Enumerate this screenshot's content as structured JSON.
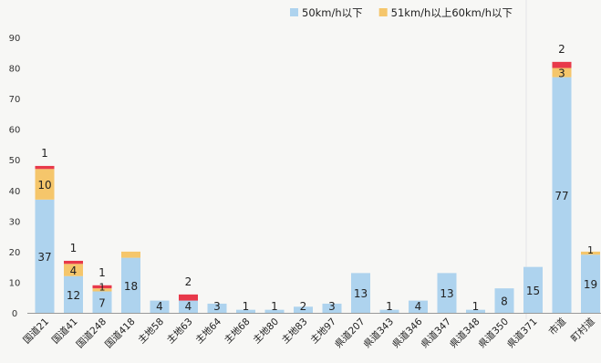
{
  "chart_data": {
    "type": "bar",
    "stacked": true,
    "legend_position": "top-right",
    "ylim": [
      0,
      90
    ],
    "yticks": [
      0,
      10,
      20,
      30,
      40,
      50,
      60,
      70,
      80,
      90
    ],
    "grid": false,
    "categories": [
      "国道21",
      "国道41",
      "国道248",
      "国道418",
      "主地58",
      "主地63",
      "主地64",
      "主地68",
      "主地80",
      "主地83",
      "主地97",
      "県道207",
      "県道343",
      "県道346",
      "県道347",
      "県道348",
      "県道350",
      "県道371",
      "市道",
      "町村道"
    ],
    "series": [
      {
        "name": "50km/h以下",
        "color": "#aed3ee",
        "values": [
          37,
          12,
          7,
          18,
          4,
          4,
          3,
          1,
          1,
          2,
          3,
          13,
          1,
          4,
          13,
          1,
          8,
          15,
          77,
          19
        ],
        "labels": [
          "37",
          "12",
          "7",
          "18",
          "4",
          "4",
          "3",
          "1",
          "1",
          "2",
          "3",
          "13",
          "1",
          "4",
          "13",
          "1",
          "8",
          "15",
          "77",
          "19"
        ]
      },
      {
        "name": "51km/h以上60km/h以下",
        "color": "#f5c66b",
        "values": [
          10,
          4,
          1,
          2,
          0,
          0,
          0,
          0,
          0,
          0,
          0,
          0,
          0,
          0,
          0,
          0,
          0,
          0,
          3,
          1
        ],
        "labels": [
          "10",
          "4",
          "1",
          "",
          "",
          "",
          "",
          "",
          "",
          "",
          "",
          "",
          "",
          "",
          "",
          "",
          "",
          "",
          "3",
          "1"
        ]
      },
      {
        "name": "",
        "color": "#e8394a",
        "values": [
          1,
          1,
          1,
          0,
          0,
          2,
          0,
          0,
          0,
          0,
          0,
          0,
          0,
          0,
          0,
          0,
          0,
          0,
          2,
          0
        ],
        "labels": [
          "1",
          "1",
          "1",
          "",
          "",
          "2",
          "",
          "",
          "",
          "",
          "",
          "",
          "",
          "",
          "",
          "",
          "",
          "",
          "2",
          ""
        ]
      }
    ]
  }
}
